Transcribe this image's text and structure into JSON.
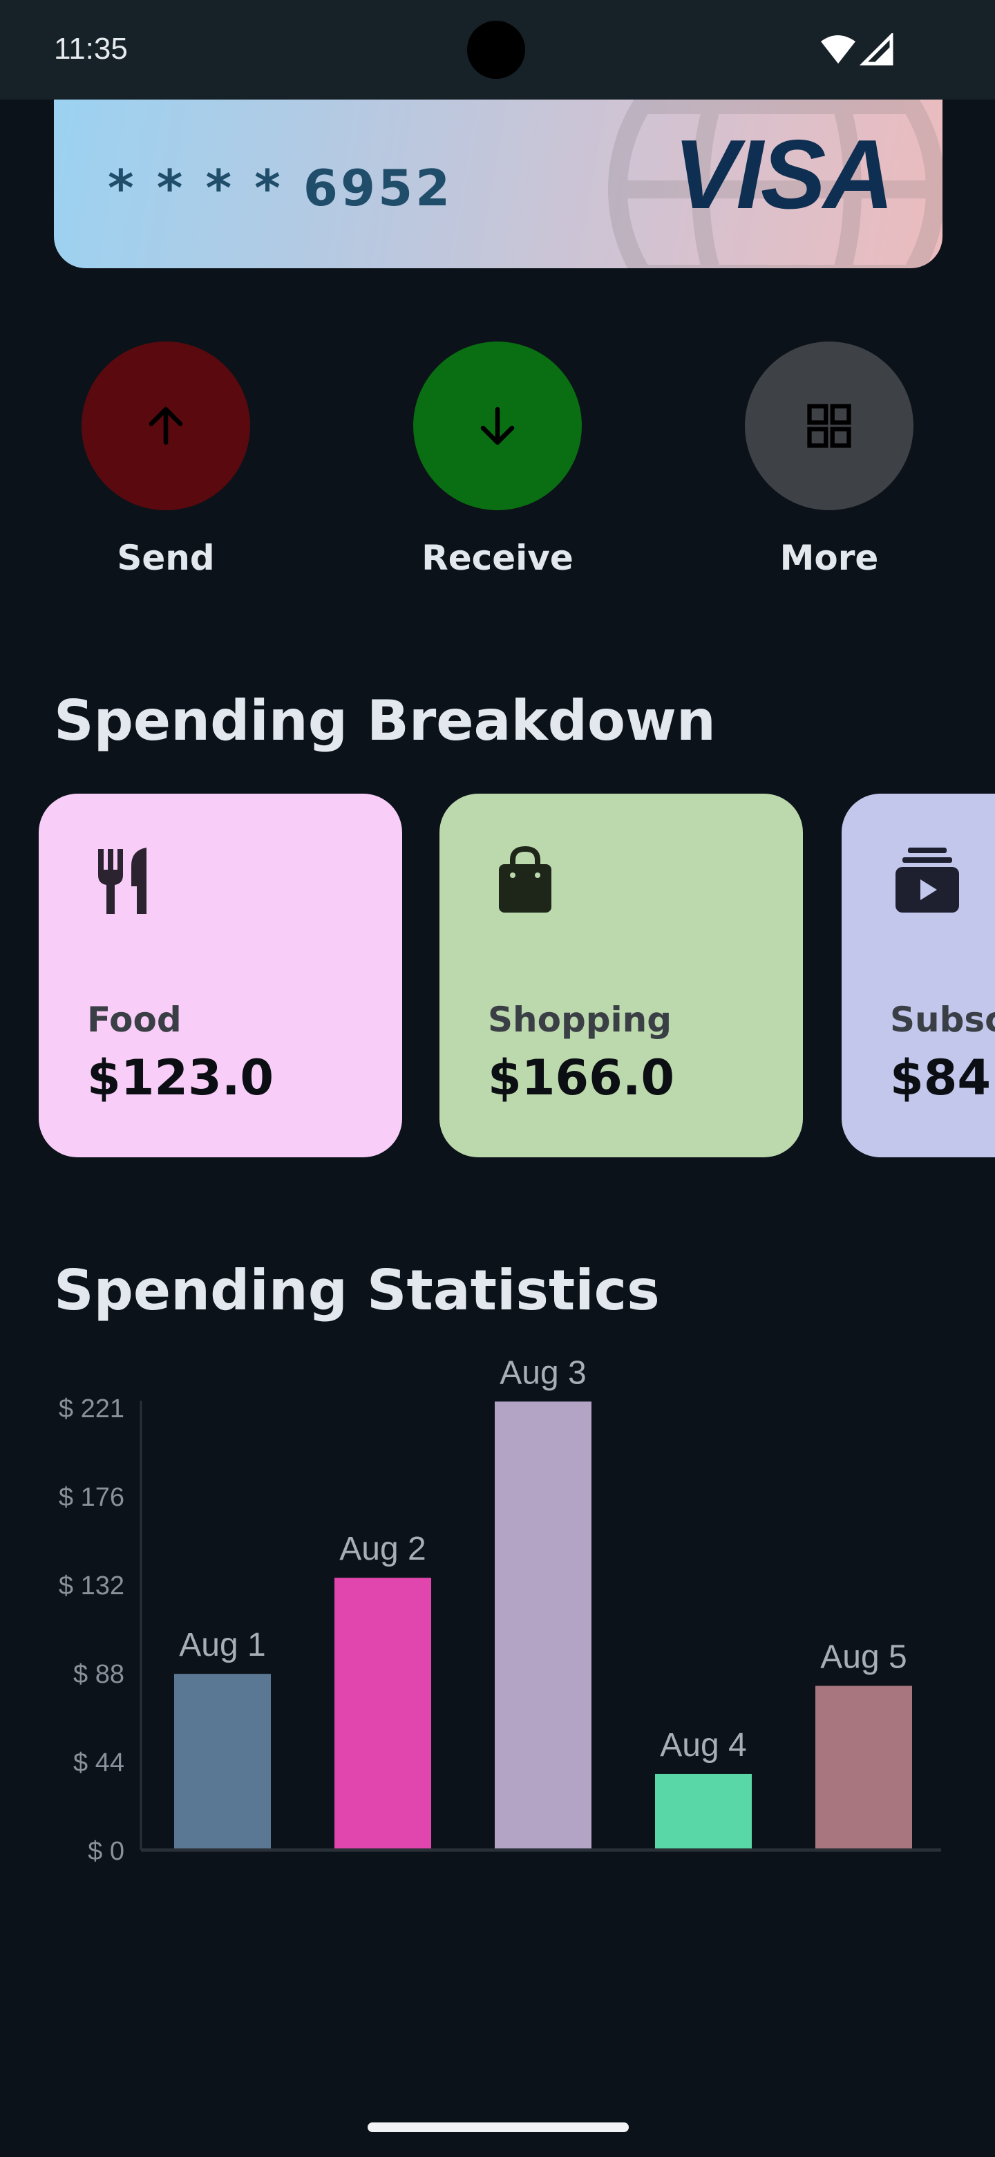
{
  "status_bar": {
    "time": "11:35",
    "icons": [
      "wifi-icon",
      "signal-icon"
    ]
  },
  "card": {
    "number": "* * * * 6952",
    "brand": "VISA"
  },
  "actions": [
    {
      "label": "Send",
      "icon": "arrow-up-icon",
      "color": "#5a0a0f"
    },
    {
      "label": "Receive",
      "icon": "arrow-down-icon",
      "color": "#0a6f12"
    },
    {
      "label": "More",
      "icon": "grid-icon",
      "color": "#3e4246"
    }
  ],
  "breakdown": {
    "title": "Spending Breakdown",
    "items": [
      {
        "name": "Food",
        "amount": "$123.0",
        "icon": "fork-knife-icon",
        "color": "#f8cdf8"
      },
      {
        "name": "Shopping",
        "amount": "$166.0",
        "icon": "shopping-bag-icon",
        "color": "#bcd8ad"
      },
      {
        "name": "Subsc",
        "amount": "$84.",
        "icon": "subscriptions-icon",
        "color": "#c3c7ec"
      }
    ]
  },
  "statistics": {
    "title": "Spending Statistics"
  },
  "chart_data": {
    "type": "bar",
    "categories": [
      "Aug 1",
      "Aug 2",
      "Aug 3",
      "Aug 4",
      "Aug 5"
    ],
    "values": [
      88,
      136,
      224,
      38,
      82
    ],
    "colors": [
      "#5a7893",
      "#e046ad",
      "#b3a4c6",
      "#5ad7a7",
      "#a8767e"
    ],
    "y_ticks": [
      "$ 0",
      "$ 44",
      "$ 88",
      "$ 132",
      "$ 176",
      "$ 221"
    ],
    "ylim": [
      0,
      221
    ],
    "grid": false,
    "data_labels": "category-above-bar"
  }
}
